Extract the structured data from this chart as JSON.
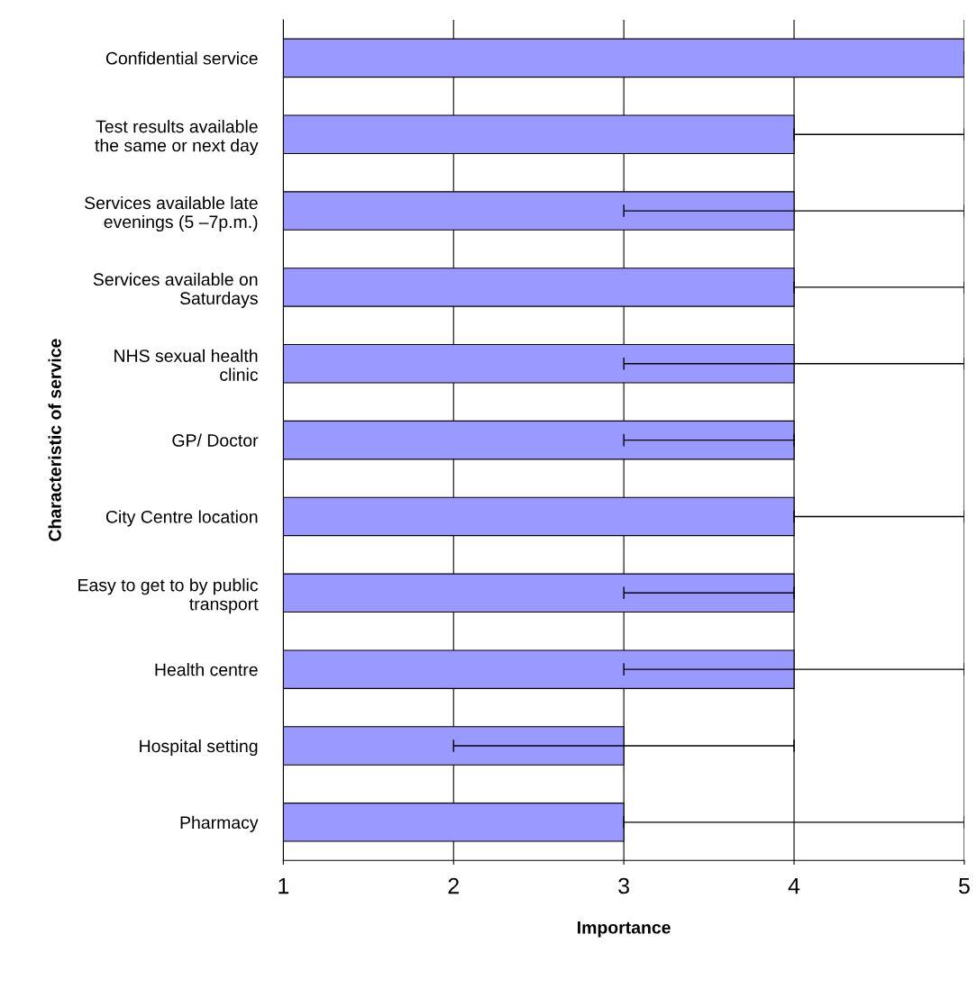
{
  "chart_data": {
    "type": "bar",
    "orientation": "horizontal",
    "xlabel": "Importance",
    "ylabel": "Characteristic of service",
    "categories": [
      "Confidential service",
      "Test results available\nthe same or next day",
      "Services available late\nevenings (5 –7p.m.)",
      "Services available on\nSaturdays",
      "NHS sexual health\nclinic",
      "GP/ Doctor",
      "City Centre location",
      "Easy to get to by public\ntransport",
      "Health centre",
      "Hospital setting",
      "Pharmacy"
    ],
    "values": [
      5,
      4,
      4,
      4,
      4,
      4,
      4,
      4,
      4,
      3,
      3
    ],
    "errors": [
      [
        5,
        5
      ],
      [
        4,
        5
      ],
      [
        3,
        5
      ],
      [
        4,
        5
      ],
      [
        3,
        5
      ],
      [
        3,
        4
      ],
      [
        4,
        5
      ],
      [
        3,
        4
      ],
      [
        3,
        5
      ],
      [
        2,
        4
      ],
      [
        3,
        5
      ]
    ],
    "color": "#9999ff",
    "xlim": [
      1,
      5
    ],
    "xticks": [
      1,
      2,
      3,
      4,
      5
    ],
    "grid": "x"
  }
}
